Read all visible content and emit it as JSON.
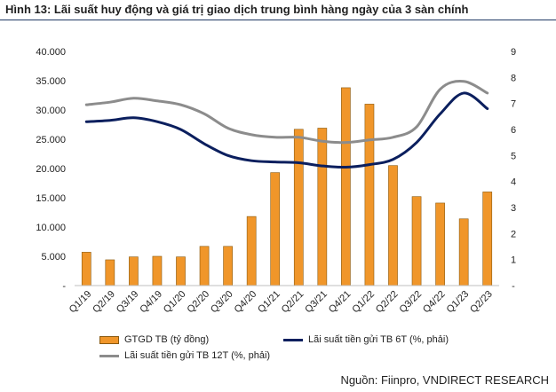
{
  "figure": {
    "title": "Hình 13: Lãi suất huy động và giá trị giao dịch trung bình hàng ngày của 3 sàn chính",
    "source": "Nguồn: Fiinpro, VNDIRECT RESEARCH"
  },
  "colors": {
    "bar": "#F0962A",
    "bar_outline": "#8A5A10",
    "line_6t": "#0B1F5E",
    "line_12t": "#8C8C8C",
    "title_rule": "#1F3864"
  },
  "chart_data": {
    "type": "bar",
    "categories": [
      "Q1/19",
      "Q2/19",
      "Q3/19",
      "Q4/19",
      "Q1/20",
      "Q2/20",
      "Q3/20",
      "Q4/20",
      "Q1/21",
      "Q2/21",
      "Q3/21",
      "Q4/21",
      "Q1/22",
      "Q2/22",
      "Q3/22",
      "Q4/22",
      "Q1/23",
      "Q2/23"
    ],
    "series": [
      {
        "name": "GTGD  TB (tỷ đồng)",
        "type": "bar",
        "axis": "left",
        "values": [
          5700,
          4400,
          4900,
          5000,
          4900,
          6700,
          6700,
          11800,
          19300,
          26700,
          26900,
          33800,
          31000,
          20500,
          15200,
          14100,
          11400,
          16000
        ]
      },
      {
        "name": "Lãi suất tiền gửi TB 6T (%, phải)",
        "type": "line",
        "axis": "right",
        "smooth": true,
        "values": [
          6.3,
          6.35,
          6.45,
          6.3,
          6.0,
          5.45,
          5.0,
          4.8,
          4.75,
          4.72,
          4.6,
          4.55,
          4.65,
          4.85,
          5.5,
          6.6,
          7.4,
          6.8
        ]
      },
      {
        "name": "Lãi suất tiền gửi TB 12T (%, phải)",
        "type": "line",
        "axis": "right",
        "smooth": true,
        "values": [
          6.95,
          7.05,
          7.2,
          7.1,
          6.95,
          6.6,
          6.05,
          5.8,
          5.7,
          5.7,
          5.55,
          5.5,
          5.6,
          5.7,
          6.1,
          7.55,
          7.85,
          7.4
        ]
      }
    ],
    "y_left": {
      "lim": [
        0,
        40000
      ],
      "ticks": [
        "-",
        "5.000",
        "10.000",
        "15.000",
        "20.000",
        "25.000",
        "30.000",
        "35.000",
        "40.000"
      ]
    },
    "y_right": {
      "lim": [
        0,
        9
      ],
      "ticks": [
        "-",
        "1",
        "2",
        "3",
        "4",
        "5",
        "6",
        "7",
        "8",
        "9"
      ]
    },
    "grid": false,
    "legend_position": "bottom"
  }
}
